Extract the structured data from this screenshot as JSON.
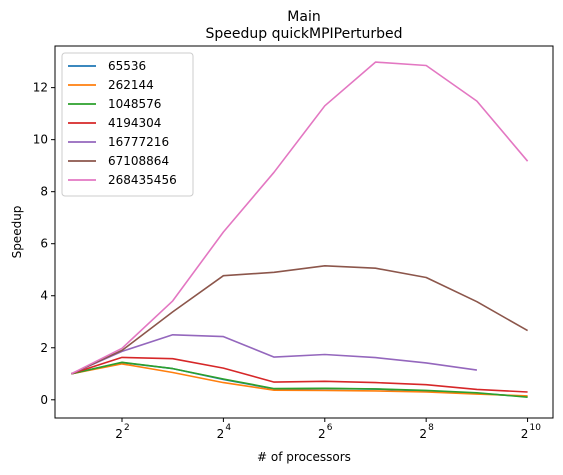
{
  "chart_data": {
    "type": "line",
    "title": "Main",
    "subtitle": "Speedup quickMPIPerturbed",
    "xlabel": "# of processors",
    "ylabel": "Speedup",
    "xscale": "log2",
    "xlim": [
      1.6,
      1450
    ],
    "ylim": [
      -0.7,
      13.6
    ],
    "x_ticks": [
      {
        "value": 4,
        "base": "2",
        "exp": "2"
      },
      {
        "value": 16,
        "base": "2",
        "exp": "4"
      },
      {
        "value": 64,
        "base": "2",
        "exp": "6"
      },
      {
        "value": 256,
        "base": "2",
        "exp": "8"
      },
      {
        "value": 1024,
        "base": "2",
        "exp": "10"
      }
    ],
    "y_ticks": [
      0,
      2,
      4,
      6,
      8,
      10,
      12
    ],
    "y_tick_labels": [
      "0",
      "2",
      "4",
      "6",
      "8",
      "10",
      "12"
    ],
    "grid": false,
    "legend_position": "top-left",
    "x": [
      2,
      4,
      8,
      16,
      32,
      64,
      128,
      256,
      512,
      1024
    ],
    "series": [
      {
        "name": "65536",
        "color": "#1f77b4",
        "values": [
          1.0,
          1.43,
          1.2,
          0.78,
          0.42,
          0.43,
          0.41,
          0.34,
          0.25,
          0.12
        ]
      },
      {
        "name": "262144",
        "color": "#ff7f0e",
        "values": [
          1.0,
          1.38,
          1.05,
          0.66,
          0.37,
          0.36,
          0.34,
          0.3,
          0.22,
          0.15
        ]
      },
      {
        "name": "1048576",
        "color": "#2ca02c",
        "values": [
          1.0,
          1.44,
          1.2,
          0.8,
          0.43,
          0.44,
          0.42,
          0.36,
          0.27,
          0.1
        ]
      },
      {
        "name": "4194304",
        "color": "#d62728",
        "values": [
          1.0,
          1.63,
          1.58,
          1.22,
          0.68,
          0.71,
          0.66,
          0.58,
          0.4,
          0.3
        ]
      },
      {
        "name": "16777216",
        "color": "#9467bd",
        "values": [
          1.0,
          1.86,
          2.5,
          2.43,
          1.64,
          1.74,
          1.62,
          1.42,
          1.14,
          null
        ]
      },
      {
        "name": "67108864",
        "color": "#8c564b",
        "values": [
          1.0,
          1.9,
          3.38,
          4.77,
          4.9,
          5.15,
          5.06,
          4.7,
          3.77,
          2.66
        ]
      },
      {
        "name": "268435456",
        "color": "#e377c2",
        "values": [
          1.0,
          1.98,
          3.8,
          6.45,
          8.75,
          11.3,
          12.98,
          12.85,
          11.48,
          9.17
        ]
      }
    ]
  }
}
